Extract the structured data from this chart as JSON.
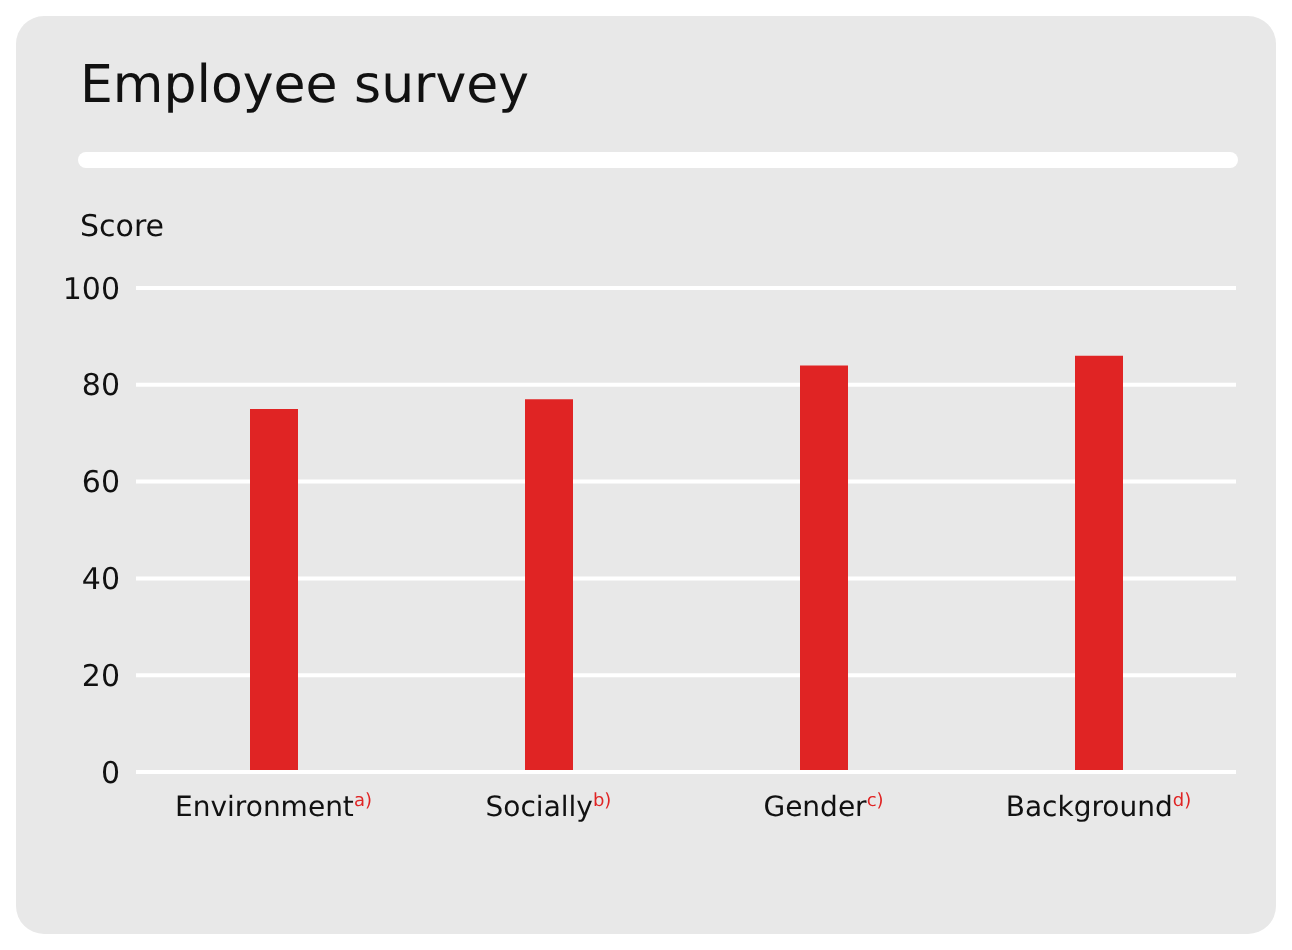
{
  "chart_data": {
    "type": "bar",
    "title": "Employee survey",
    "ylabel": "Score",
    "categories": [
      "Environment$^{a)}$",
      "Socially$^{b)}$",
      "Gender$^{c)}$",
      "Background$^{d)}$"
    ],
    "values": [
      75,
      77,
      84,
      86
    ],
    "color": "#e02424",
    "ylim": [
      0,
      100
    ],
    "yticks": [
      0,
      20,
      40,
      60,
      80,
      100
    ],
    "grid": "y"
  }
}
